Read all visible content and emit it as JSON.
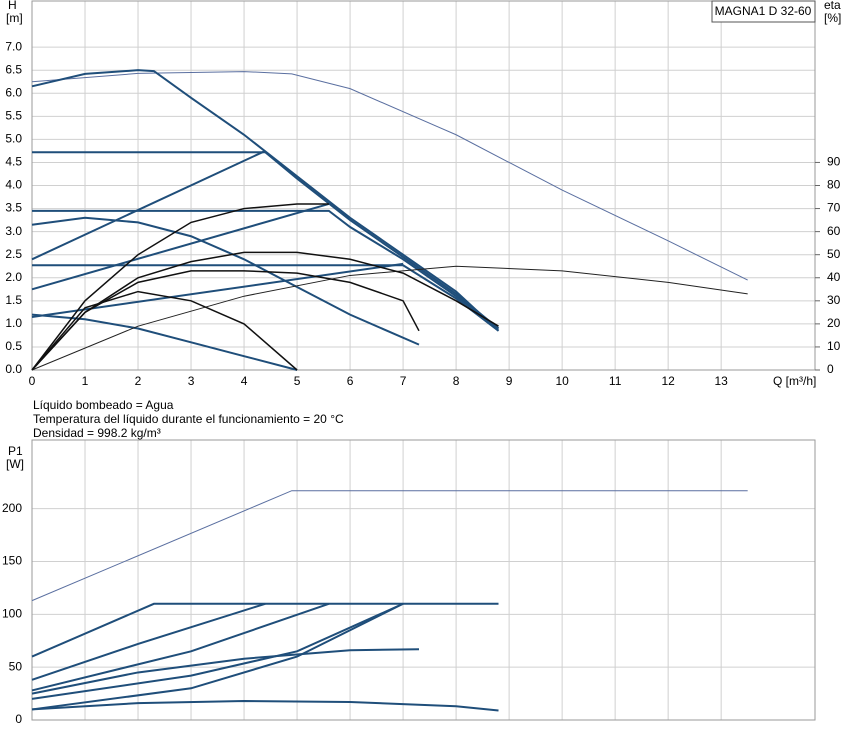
{
  "chart_data": [
    {
      "type": "line",
      "title": "MAGNA1 D 32-60",
      "y_label": "H",
      "y_unit": "[m]",
      "y2_label": "eta",
      "y2_unit": "[%]",
      "x_label": "Q [m³/h]",
      "annotations": [
        "Líquido bombeado = Agua",
        "Temperatura del líquido durante el funcionamiento = 20 °C",
        "Densidad = 998.2 kg/m³"
      ],
      "xlim": [
        0,
        14.77
      ],
      "ylim": [
        0,
        8
      ],
      "y2lim": [
        0,
        160
      ],
      "grid": true,
      "xticks": [
        0,
        1,
        2,
        3,
        4,
        5,
        6,
        7,
        8,
        9,
        10,
        11,
        12,
        13
      ],
      "yticks": [
        {
          "value": 0,
          "label": "0.0"
        },
        0.5,
        {
          "value": 1,
          "label": "1.0"
        },
        1.5,
        {
          "value": 2,
          "label": "2.0"
        },
        2.5,
        {
          "value": 3,
          "label": "3.0"
        },
        3.5,
        {
          "value": 4,
          "label": "4.0"
        },
        4.5,
        {
          "value": 5,
          "label": "5.0"
        },
        5.5,
        {
          "value": 6,
          "label": "6.0"
        },
        6.5,
        {
          "value": 7,
          "label": "7.0"
        }
      ],
      "y2ticks": [
        0,
        10,
        20,
        30,
        40,
        50,
        60,
        70,
        80,
        90
      ],
      "series": [
        {
          "color": "#5a6fa0",
          "width": 1,
          "x": [
            0,
            2,
            4,
            4.9,
            6,
            8,
            10,
            12,
            13.5
          ],
          "values": [
            6.25,
            6.43,
            6.47,
            6.42,
            6.1,
            5.1,
            3.9,
            2.8,
            1.95
          ]
        },
        {
          "color": "#1f4e7a",
          "width": 2,
          "x": [
            0,
            1,
            2,
            2.3,
            3,
            4,
            5,
            6,
            7,
            8,
            8.8
          ],
          "values": [
            6.15,
            6.42,
            6.5,
            6.48,
            5.9,
            5.1,
            4.2,
            3.3,
            2.5,
            1.7,
            0.85
          ]
        },
        {
          "color": "#1f4e7a",
          "width": 2,
          "x": [
            0,
            4.4,
            5,
            6,
            7,
            8,
            8.8
          ],
          "values": [
            4.72,
            4.72,
            4.15,
            3.25,
            2.45,
            1.65,
            0.9
          ]
        },
        {
          "color": "#1f4e7a",
          "width": 2,
          "x": [
            0,
            4.4
          ],
          "values": [
            2.4,
            4.75
          ]
        },
        {
          "color": "#1f4e7a",
          "width": 2,
          "x": [
            0,
            5.6,
            6,
            7,
            8,
            8.8
          ],
          "values": [
            3.45,
            3.45,
            3.1,
            2.4,
            1.6,
            0.9
          ]
        },
        {
          "color": "#1f4e7a",
          "width": 2,
          "x": [
            0,
            5.6
          ],
          "values": [
            1.75,
            3.6
          ]
        },
        {
          "color": "#1f4e7a",
          "width": 2,
          "x": [
            0,
            7,
            8,
            8.8
          ],
          "values": [
            2.27,
            2.27,
            1.55,
            0.85
          ]
        },
        {
          "color": "#1f4e7a",
          "width": 2,
          "x": [
            0,
            7
          ],
          "values": [
            1.15,
            2.3
          ]
        },
        {
          "color": "#1f4e7a",
          "width": 2,
          "x": [
            0,
            1,
            2,
            3,
            4,
            5,
            6,
            7.3
          ],
          "values": [
            3.15,
            3.3,
            3.2,
            2.9,
            2.4,
            1.8,
            1.2,
            0.55
          ]
        },
        {
          "color": "#1f4e7a",
          "width": 2,
          "x": [
            0,
            1,
            2,
            3,
            4,
            5
          ],
          "values": [
            1.2,
            1.1,
            0.9,
            0.6,
            0.3,
            0
          ]
        },
        {
          "color": "#222222",
          "width": 1,
          "axis": "y2",
          "x": [
            0,
            2,
            4,
            6,
            8,
            10,
            12,
            13.5
          ],
          "values": [
            0,
            19,
            32,
            41,
            45,
            43,
            38,
            33
          ]
        },
        {
          "color": "#111111",
          "width": 1.5,
          "axis": "y2",
          "x": [
            0,
            1,
            2,
            3,
            4,
            5,
            6,
            7,
            8,
            8.8
          ],
          "values": [
            0,
            25,
            40,
            47,
            51,
            51,
            48,
            42,
            30,
            19
          ]
        },
        {
          "color": "#111111",
          "width": 1.5,
          "axis": "y2",
          "x": [
            0,
            1,
            2,
            3,
            4,
            5,
            6,
            7,
            7.3
          ],
          "values": [
            0,
            25,
            38,
            43,
            43,
            42,
            38,
            30,
            17
          ]
        },
        {
          "color": "#111111",
          "width": 1.5,
          "axis": "y2",
          "x": [
            0,
            1,
            2,
            3,
            4,
            5,
            5.6
          ],
          "values": [
            0,
            30,
            50,
            64,
            70,
            72,
            72
          ]
        },
        {
          "color": "#111111",
          "width": 1.5,
          "axis": "y2",
          "x": [
            0,
            1,
            2,
            3,
            4,
            5
          ],
          "values": [
            0,
            27,
            34,
            30,
            20,
            0
          ]
        }
      ]
    },
    {
      "type": "line",
      "y_label": "P1",
      "y_unit": "[W]",
      "xlim": [
        0,
        14.77
      ],
      "ylim": [
        0,
        265
      ],
      "grid": true,
      "xticks": [
        0,
        1,
        2,
        3,
        4,
        5,
        6,
        7,
        8,
        9,
        10,
        11,
        12,
        13
      ],
      "yticks": [
        0,
        50,
        100,
        150,
        200
      ],
      "series": [
        {
          "color": "#5a6fa0",
          "width": 1,
          "x": [
            0,
            4.9,
            13.5
          ],
          "values": [
            113,
            217,
            217
          ]
        },
        {
          "color": "#1f4e7a",
          "width": 2,
          "x": [
            0,
            2.3,
            8.8
          ],
          "values": [
            60,
            110,
            110
          ]
        },
        {
          "color": "#1f4e7a",
          "width": 2,
          "x": [
            0,
            2,
            4.4
          ],
          "values": [
            38,
            72,
            110
          ]
        },
        {
          "color": "#1f4e7a",
          "width": 2,
          "x": [
            0,
            3,
            5.6
          ],
          "values": [
            28,
            65,
            110
          ]
        },
        {
          "color": "#1f4e7a",
          "width": 2,
          "x": [
            0,
            3,
            5,
            7
          ],
          "values": [
            20,
            42,
            65,
            110
          ]
        },
        {
          "color": "#1f4e7a",
          "width": 2,
          "x": [
            0,
            3,
            5,
            7
          ],
          "values": [
            10,
            30,
            60,
            110
          ]
        },
        {
          "color": "#1f4e7a",
          "width": 2,
          "x": [
            0,
            2,
            4,
            6,
            7.3
          ],
          "values": [
            25,
            45,
            58,
            66,
            67
          ]
        },
        {
          "color": "#1f4e7a",
          "width": 2,
          "x": [
            0,
            2,
            4,
            6,
            8,
            8.8
          ],
          "values": [
            10,
            16,
            18,
            17,
            13,
            9
          ]
        }
      ]
    }
  ]
}
